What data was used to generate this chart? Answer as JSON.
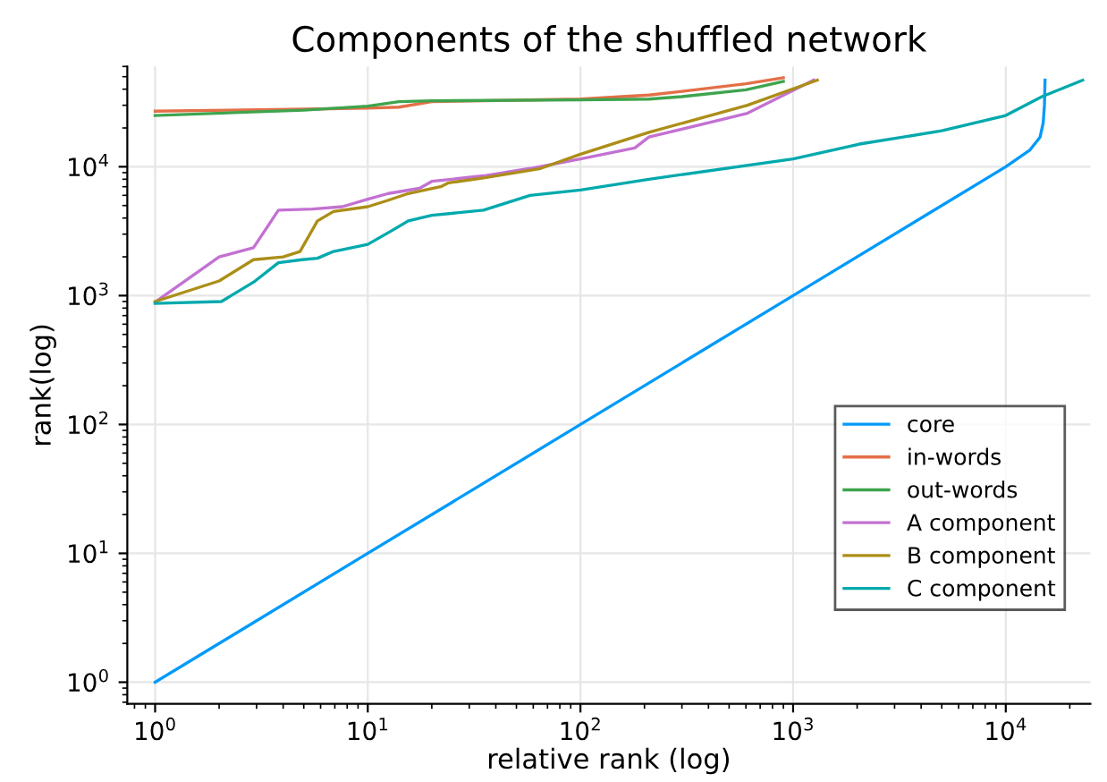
{
  "chart_data": {
    "type": "line",
    "title": "Components of the shuffled network",
    "xlabel": "relative rank (log)",
    "ylabel": "rank(log)",
    "log": "xy",
    "grid": true,
    "legend": "bottom right",
    "line_style": "solid",
    "xlim": [
      0.74,
      25000
    ],
    "ylim": [
      0.68,
      60000
    ],
    "xticks": [
      {
        "value": 1,
        "label": "10$^{0}$"
      },
      {
        "value": 10,
        "label": "10$^{1}$"
      },
      {
        "value": 100,
        "label": "10$^{2}$"
      },
      {
        "value": 1000,
        "label": "10$^{3}$"
      },
      {
        "value": 10000,
        "label": "10$^{4}$"
      }
    ],
    "yticks": [
      {
        "value": 1,
        "label": "10$^{0}$"
      },
      {
        "value": 10,
        "label": "10$^{1}$"
      },
      {
        "value": 100,
        "label": "10$^{2}$"
      },
      {
        "value": 1000,
        "label": "10$^{3}$"
      },
      {
        "value": 10000,
        "label": "10$^{4}$"
      }
    ],
    "series": [
      {
        "name": "core",
        "color": "#009afa",
        "x": [
          1,
          10,
          100,
          1000,
          10000,
          13000,
          14500,
          15000,
          15200,
          15300
        ],
        "values": [
          1,
          10,
          100,
          1000,
          10000,
          13500,
          17000,
          22000,
          30000,
          47000
        ]
      },
      {
        "name": "in-words",
        "color": "#e36f47",
        "x": [
          1,
          5,
          10,
          14,
          20,
          100,
          210,
          300,
          600,
          900
        ],
        "values": [
          27000,
          28000,
          28500,
          29000,
          32000,
          33500,
          36000,
          38500,
          44000,
          49000
        ]
      },
      {
        "name": "out-words",
        "color": "#3ea44e",
        "x": [
          1,
          5,
          10,
          14,
          20,
          100,
          210,
          300,
          600,
          900
        ],
        "values": [
          25000,
          27500,
          29500,
          32000,
          32500,
          33000,
          33500,
          35000,
          39500,
          46000
        ]
      },
      {
        "name": "A component",
        "color": "#c371d2",
        "x": [
          1,
          2,
          2.9,
          3.8,
          5.5,
          7.6,
          10,
          12.5,
          17.5,
          20,
          35,
          58,
          100,
          180,
          210,
          610,
          1250
        ],
        "values": [
          890,
          2000,
          2350,
          4600,
          4700,
          4900,
          5600,
          6200,
          6800,
          7700,
          8500,
          9700,
          11500,
          14000,
          17000,
          26000,
          47000
        ]
      },
      {
        "name": "B component",
        "color": "#ac8e18",
        "x": [
          1,
          2,
          2.9,
          4,
          4.8,
          5.8,
          6.9,
          10,
          12.5,
          15.5,
          22,
          24,
          35,
          65,
          100,
          210,
          610,
          1300
        ],
        "values": [
          900,
          1300,
          1900,
          2000,
          2200,
          3800,
          4500,
          4900,
          5500,
          6200,
          7000,
          7500,
          8200,
          9700,
          12500,
          18500,
          30000,
          47000
        ]
      },
      {
        "name": "C component",
        "color": "#00a9ad",
        "x": [
          1,
          2.05,
          2.9,
          3.8,
          4.9,
          5.8,
          6.9,
          10,
          13,
          15.5,
          20,
          35,
          58,
          100,
          210,
          1000,
          2050,
          5000,
          10000,
          14800,
          23000
        ],
        "values": [
          870,
          900,
          1270,
          1800,
          1900,
          1950,
          2200,
          2500,
          3200,
          3800,
          4200,
          4600,
          6000,
          6600,
          8000,
          11500,
          15000,
          19000,
          25000,
          35000,
          47000
        ]
      }
    ]
  }
}
